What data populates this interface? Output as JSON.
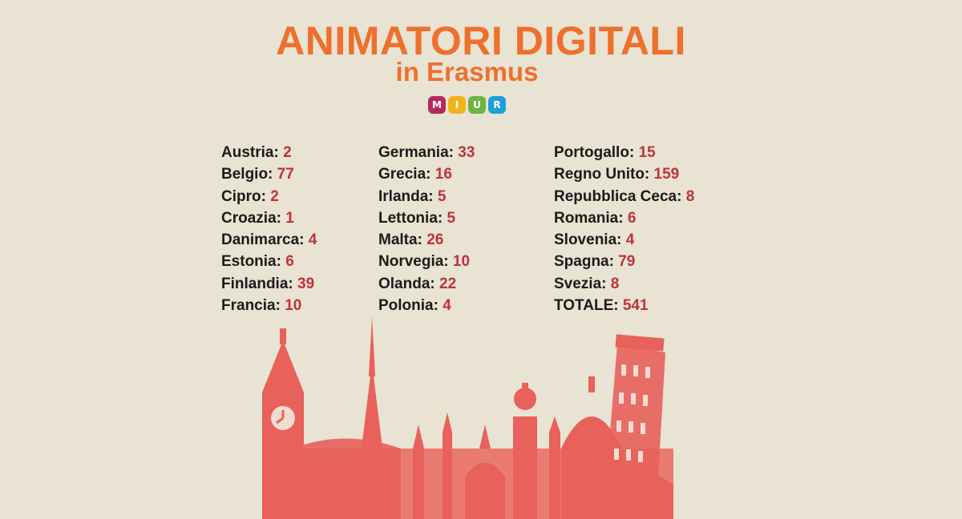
{
  "title": "ANIMATORI DIGITALI",
  "subtitle": "in Erasmus",
  "logo": {
    "letters": [
      "M",
      "I",
      "U",
      "R"
    ],
    "colors": [
      "#b5285e",
      "#f2b21c",
      "#6cb43f",
      "#1e9fd8"
    ]
  },
  "columns": [
    [
      {
        "country": "Austria:",
        "value": "2"
      },
      {
        "country": "Belgio:",
        "value": "77"
      },
      {
        "country": "Cipro:",
        "value": "2"
      },
      {
        "country": "Croazia:",
        "value": "1"
      },
      {
        "country": "Danimarca:",
        "value": "4"
      },
      {
        "country": "Estonia:",
        "value": "6"
      },
      {
        "country": "Finlandia:",
        "value": "39"
      },
      {
        "country": "Francia:",
        "value": "10"
      }
    ],
    [
      {
        "country": "Germania:",
        "value": "33"
      },
      {
        "country": "Grecia:",
        "value": "16"
      },
      {
        "country": "Irlanda:",
        "value": "5"
      },
      {
        "country": "Lettonia:",
        "value": "5"
      },
      {
        "country": "Malta:",
        "value": "26"
      },
      {
        "country": "Norvegia:",
        "value": "10"
      },
      {
        "country": "Olanda:",
        "value": "22"
      },
      {
        "country": "Polonia:",
        "value": "4"
      }
    ],
    [
      {
        "country": "Portogallo:",
        "value": "15"
      },
      {
        "country": "Regno Unito:",
        "value": "159"
      },
      {
        "country": "Repubblica Ceca:",
        "value": "8"
      },
      {
        "country": "Romania:",
        "value": "6"
      },
      {
        "country": "Slovenia:",
        "value": "4"
      },
      {
        "country": "Spagna:",
        "value": "79"
      },
      {
        "country": "Svezia:",
        "value": "8"
      },
      {
        "country": "TOTALE:",
        "value": "541"
      }
    ]
  ],
  "colors": {
    "background": "#e8e3d2",
    "title": "#ef6f2d",
    "value": "#c0323a",
    "skyline": "#e85a54"
  }
}
